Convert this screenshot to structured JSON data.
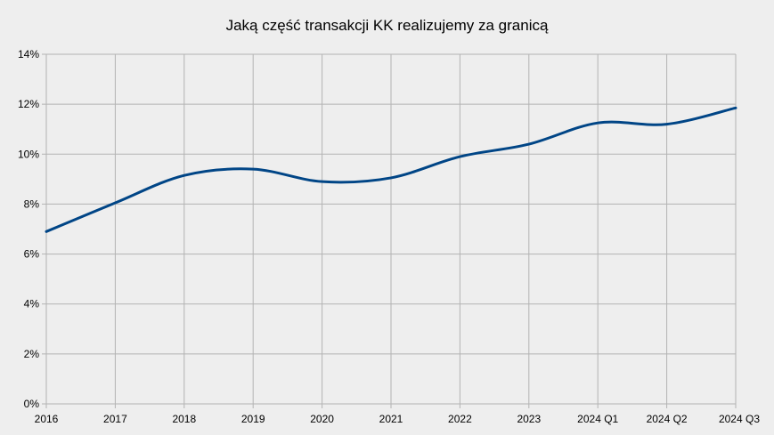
{
  "chart_data": {
    "type": "line",
    "title": "Jaką część transakcji KK realizujemy za granicą",
    "xlabel": "",
    "ylabel": "",
    "categories": [
      "2016",
      "2017",
      "2018",
      "2019",
      "2020",
      "2021",
      "2022",
      "2023",
      "2024 Q1",
      "2024 Q2",
      "2024 Q3"
    ],
    "y_ticks": [
      "0%",
      "2%",
      "4%",
      "6%",
      "8%",
      "10%",
      "12%",
      "14%"
    ],
    "ylim": [
      0,
      14
    ],
    "grid": true,
    "legend": "none",
    "series": [
      {
        "color": "#004586",
        "values": [
          6.9,
          8.05,
          9.15,
          9.4,
          8.9,
          9.05,
          9.9,
          10.4,
          11.25,
          11.2,
          11.85
        ]
      }
    ]
  }
}
